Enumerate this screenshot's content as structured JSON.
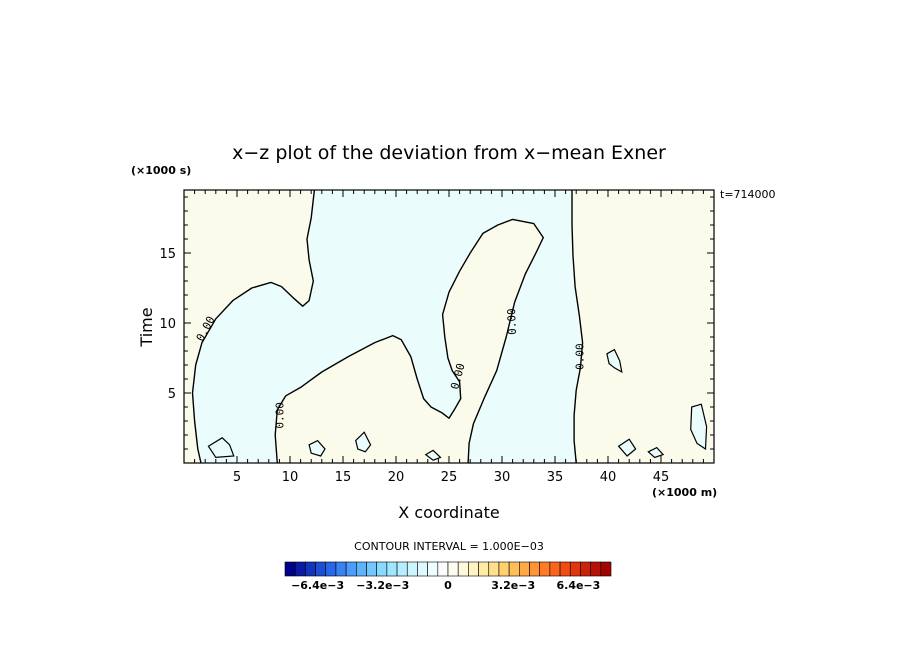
{
  "chart_data": {
    "type": "heatmap",
    "title": "x−z plot of the deviation from x−mean Exner",
    "xlabel": "X coordinate",
    "ylabel": "Time",
    "x_unit": "(×1000 m)",
    "y_unit": "(×1000 s)",
    "time_stamp": "t=714000",
    "xlim": [
      0,
      50
    ],
    "ylim": [
      0,
      19.5
    ],
    "x_ticks": [
      {
        "value": 5,
        "label": "5"
      },
      {
        "value": 10,
        "label": "10"
      },
      {
        "value": 15,
        "label": "15"
      },
      {
        "value": 20,
        "label": "20"
      },
      {
        "value": 25,
        "label": "25"
      },
      {
        "value": 30,
        "label": "30"
      },
      {
        "value": 35,
        "label": "35"
      },
      {
        "value": 40,
        "label": "40"
      },
      {
        "value": 45,
        "label": "45"
      }
    ],
    "y_ticks": [
      {
        "value": 5,
        "label": "5"
      },
      {
        "value": 10,
        "label": "10"
      },
      {
        "value": 15,
        "label": "15"
      }
    ],
    "contour_level_label": "0.00",
    "contour_interval_text": "CONTOUR INTERVAL = 1.000E−03",
    "fill_colors": {
      "negative": "#eafcfc",
      "positive": "#fbfbec"
    },
    "colorbar": {
      "labels": [
        {
          "value": -0.0064,
          "label": "−6.4e−3"
        },
        {
          "value": -0.0032,
          "label": "−3.2e−3"
        },
        {
          "value": 0,
          "label": "0"
        },
        {
          "value": 0.0032,
          "label": "3.2e−3"
        },
        {
          "value": 0.0064,
          "label": "6.4e−3"
        }
      ],
      "colors": [
        "#00008b",
        "#0a1aa3",
        "#1434bc",
        "#1e4ed4",
        "#2868e8",
        "#3a82f2",
        "#4c9cf8",
        "#5eb4fb",
        "#72c8fd",
        "#88daff",
        "#a0e6ff",
        "#b6eeff",
        "#cbf5ff",
        "#dffaff",
        "#eefdff",
        "#fbfdfb",
        "#fffdf0",
        "#fff9dc",
        "#fff3c4",
        "#ffeaa8",
        "#ffdf8c",
        "#ffd070",
        "#ffbe58",
        "#ffaa44",
        "#ff9434",
        "#ff7c26",
        "#fa641c",
        "#f04c14",
        "#e0360e",
        "#cc220a",
        "#b81206",
        "#a00404"
      ]
    },
    "contours": [
      {
        "name": "zero-contour-main",
        "points": [
          [
            1.6,
            0
          ],
          [
            1.3,
            1
          ],
          [
            1.0,
            3
          ],
          [
            0.8,
            5
          ],
          [
            1.1,
            7
          ],
          [
            1.7,
            8.6
          ],
          [
            3.0,
            10.3
          ],
          [
            4.6,
            11.6
          ],
          [
            6.4,
            12.5
          ],
          [
            8.2,
            12.9
          ],
          [
            9.2,
            12.6
          ],
          [
            10.3,
            11.8
          ],
          [
            11.2,
            11.2
          ],
          [
            11.8,
            11.6
          ],
          [
            12.2,
            13.0
          ],
          [
            11.8,
            14.5
          ],
          [
            11.6,
            16.0
          ],
          [
            12.0,
            17.5
          ],
          [
            12.3,
            19.5
          ]
        ]
      },
      {
        "name": "zero-contour-valley",
        "points": [
          [
            8.8,
            0
          ],
          [
            8.6,
            2.0
          ],
          [
            8.8,
            3.8
          ],
          [
            9.6,
            4.8
          ],
          [
            11.0,
            5.4
          ],
          [
            13.0,
            6.5
          ],
          [
            15.5,
            7.6
          ],
          [
            18.0,
            8.6
          ],
          [
            19.7,
            9.1
          ],
          [
            20.5,
            8.8
          ],
          [
            21.4,
            7.6
          ],
          [
            22.0,
            6.0
          ],
          [
            22.6,
            4.6
          ],
          [
            23.3,
            4.0
          ],
          [
            24.3,
            3.6
          ],
          [
            25.0,
            3.2
          ],
          [
            25.5,
            3.8
          ],
          [
            26.1,
            4.6
          ],
          [
            26.0,
            5.8
          ],
          [
            25.3,
            6.6
          ],
          [
            24.9,
            7.5
          ],
          [
            24.6,
            9.0
          ],
          [
            24.4,
            10.6
          ],
          [
            25.0,
            12.2
          ],
          [
            26.0,
            13.7
          ],
          [
            27.0,
            15.0
          ],
          [
            28.2,
            16.4
          ],
          [
            29.6,
            17.0
          ],
          [
            31.0,
            17.4
          ],
          [
            33.0,
            17.1
          ],
          [
            33.9,
            16.1
          ],
          [
            33.2,
            15.0
          ],
          [
            32.2,
            13.5
          ],
          [
            31.2,
            11.5
          ],
          [
            30.4,
            9.0
          ],
          [
            29.5,
            6.6
          ],
          [
            28.3,
            4.6
          ],
          [
            27.3,
            2.8
          ],
          [
            26.9,
            1.4
          ],
          [
            26.8,
            0
          ]
        ]
      },
      {
        "name": "zero-contour-right",
        "points": [
          [
            37.0,
            0
          ],
          [
            36.8,
            1.6
          ],
          [
            36.8,
            3.4
          ],
          [
            37.0,
            5.2
          ],
          [
            37.4,
            6.8
          ],
          [
            37.6,
            8.6
          ],
          [
            37.3,
            10.5
          ],
          [
            36.9,
            12.6
          ],
          [
            36.7,
            14.8
          ],
          [
            36.6,
            17.0
          ],
          [
            36.6,
            19.5
          ]
        ]
      }
    ]
  }
}
